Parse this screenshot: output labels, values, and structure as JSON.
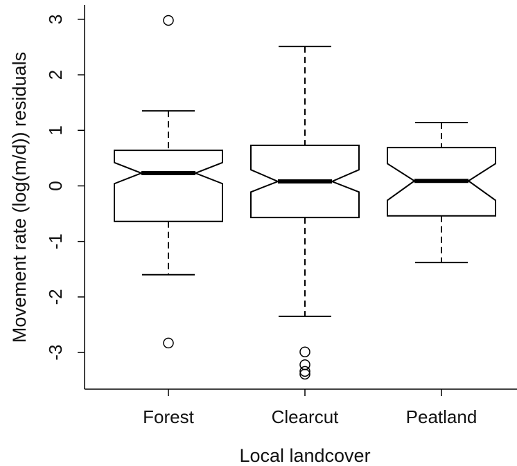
{
  "chart_data": {
    "type": "boxplot",
    "notched": true,
    "x_label": "Local landcover",
    "y_label": "Movement rate (log(m/d)) residuals",
    "categories": [
      "Forest",
      "Clearcut",
      "Peatland"
    ],
    "boxes": [
      {
        "whisker_low": -1.6,
        "q1": -0.64,
        "notch_low": 0.04,
        "median": 0.23,
        "notch_high": 0.42,
        "q3": 0.64,
        "whisker_high": 1.35,
        "outliers": [
          2.98,
          -2.83
        ]
      },
      {
        "whisker_low": -2.35,
        "q1": -0.57,
        "notch_low": -0.11,
        "median": 0.08,
        "notch_high": 0.29,
        "q3": 0.73,
        "whisker_high": 2.51,
        "outliers": [
          -2.99,
          -3.22,
          -3.34,
          -3.39
        ]
      },
      {
        "whisker_low": -1.38,
        "q1": -0.54,
        "notch_low": -0.26,
        "median": 0.09,
        "notch_high": 0.4,
        "q3": 0.69,
        "whisker_high": 1.14,
        "outliers": []
      }
    ],
    "color": "#000000",
    "ylim": [
      -3.66,
      3.26
    ],
    "yticks": [
      -3,
      -2,
      -1,
      0,
      1,
      2,
      3
    ]
  }
}
